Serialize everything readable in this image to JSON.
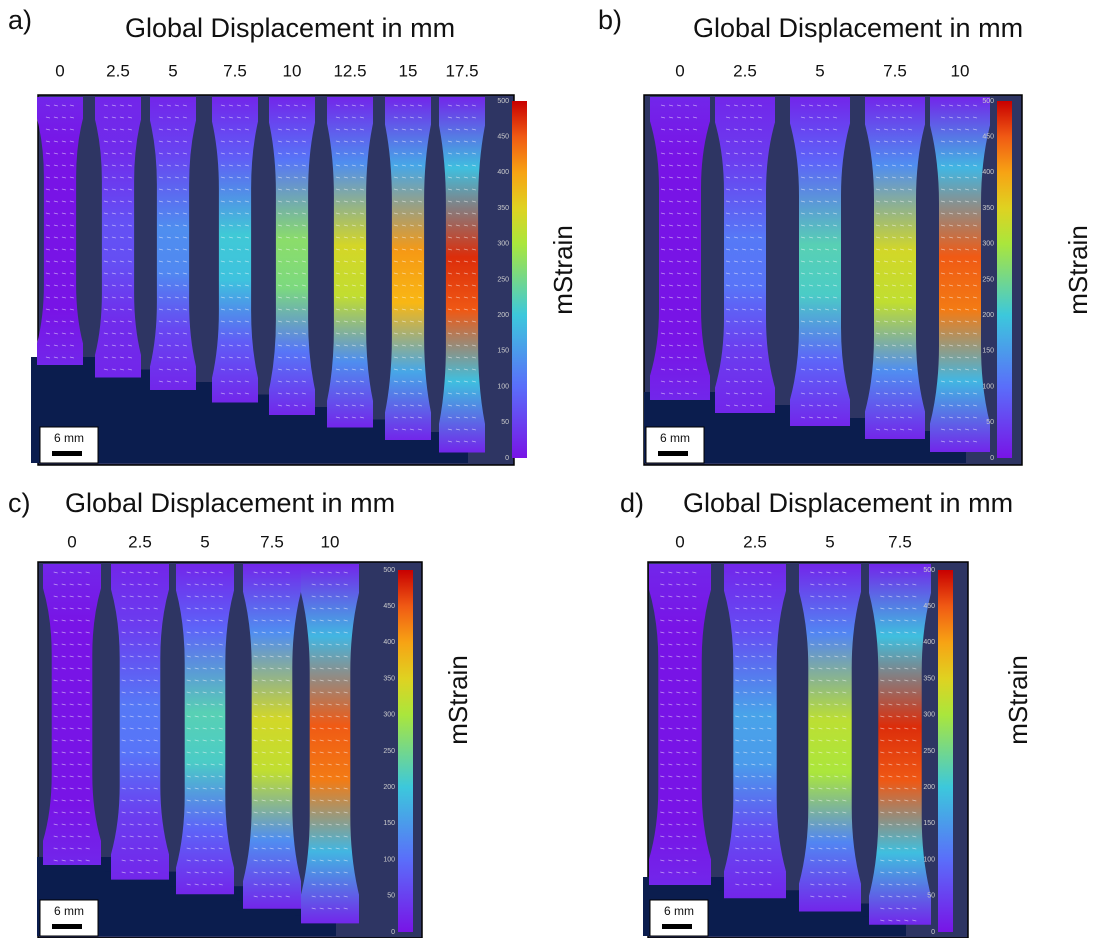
{
  "panels": [
    {
      "label": "a)",
      "title": "Global Displacement in mm",
      "displacements": [
        0,
        2.5,
        5,
        7.5,
        10,
        12.5,
        15,
        17.5
      ],
      "colorbar": {
        "label": "mStrain",
        "ticks": [
          0,
          50,
          100,
          150,
          200,
          250,
          300,
          350,
          400,
          450,
          500
        ]
      },
      "scale_bar": "6 mm"
    },
    {
      "label": "b)",
      "title": "Global Displacement in mm",
      "displacements": [
        0,
        2.5,
        5,
        7.5,
        10
      ],
      "colorbar": {
        "label": "mStrain",
        "ticks": [
          0,
          50,
          100,
          150,
          200,
          250,
          300,
          350,
          400,
          450,
          500
        ]
      },
      "scale_bar": "6 mm"
    },
    {
      "label": "c)",
      "title": "Global Displacement in mm",
      "displacements": [
        0,
        2.5,
        5,
        7.5,
        10
      ],
      "colorbar": {
        "label": "mStrain",
        "ticks": [
          0,
          50,
          100,
          150,
          200,
          250,
          300,
          350,
          400,
          450,
          500
        ]
      },
      "scale_bar": "6 mm"
    },
    {
      "label": "d)",
      "title": "Global Displacement in mm",
      "displacements": [
        0,
        2.5,
        5,
        7.5
      ],
      "colorbar": {
        "label": "mStrain",
        "ticks": [
          0,
          50,
          100,
          150,
          200,
          250,
          300,
          350,
          400,
          450,
          500
        ]
      },
      "scale_bar": "6 mm"
    }
  ]
}
